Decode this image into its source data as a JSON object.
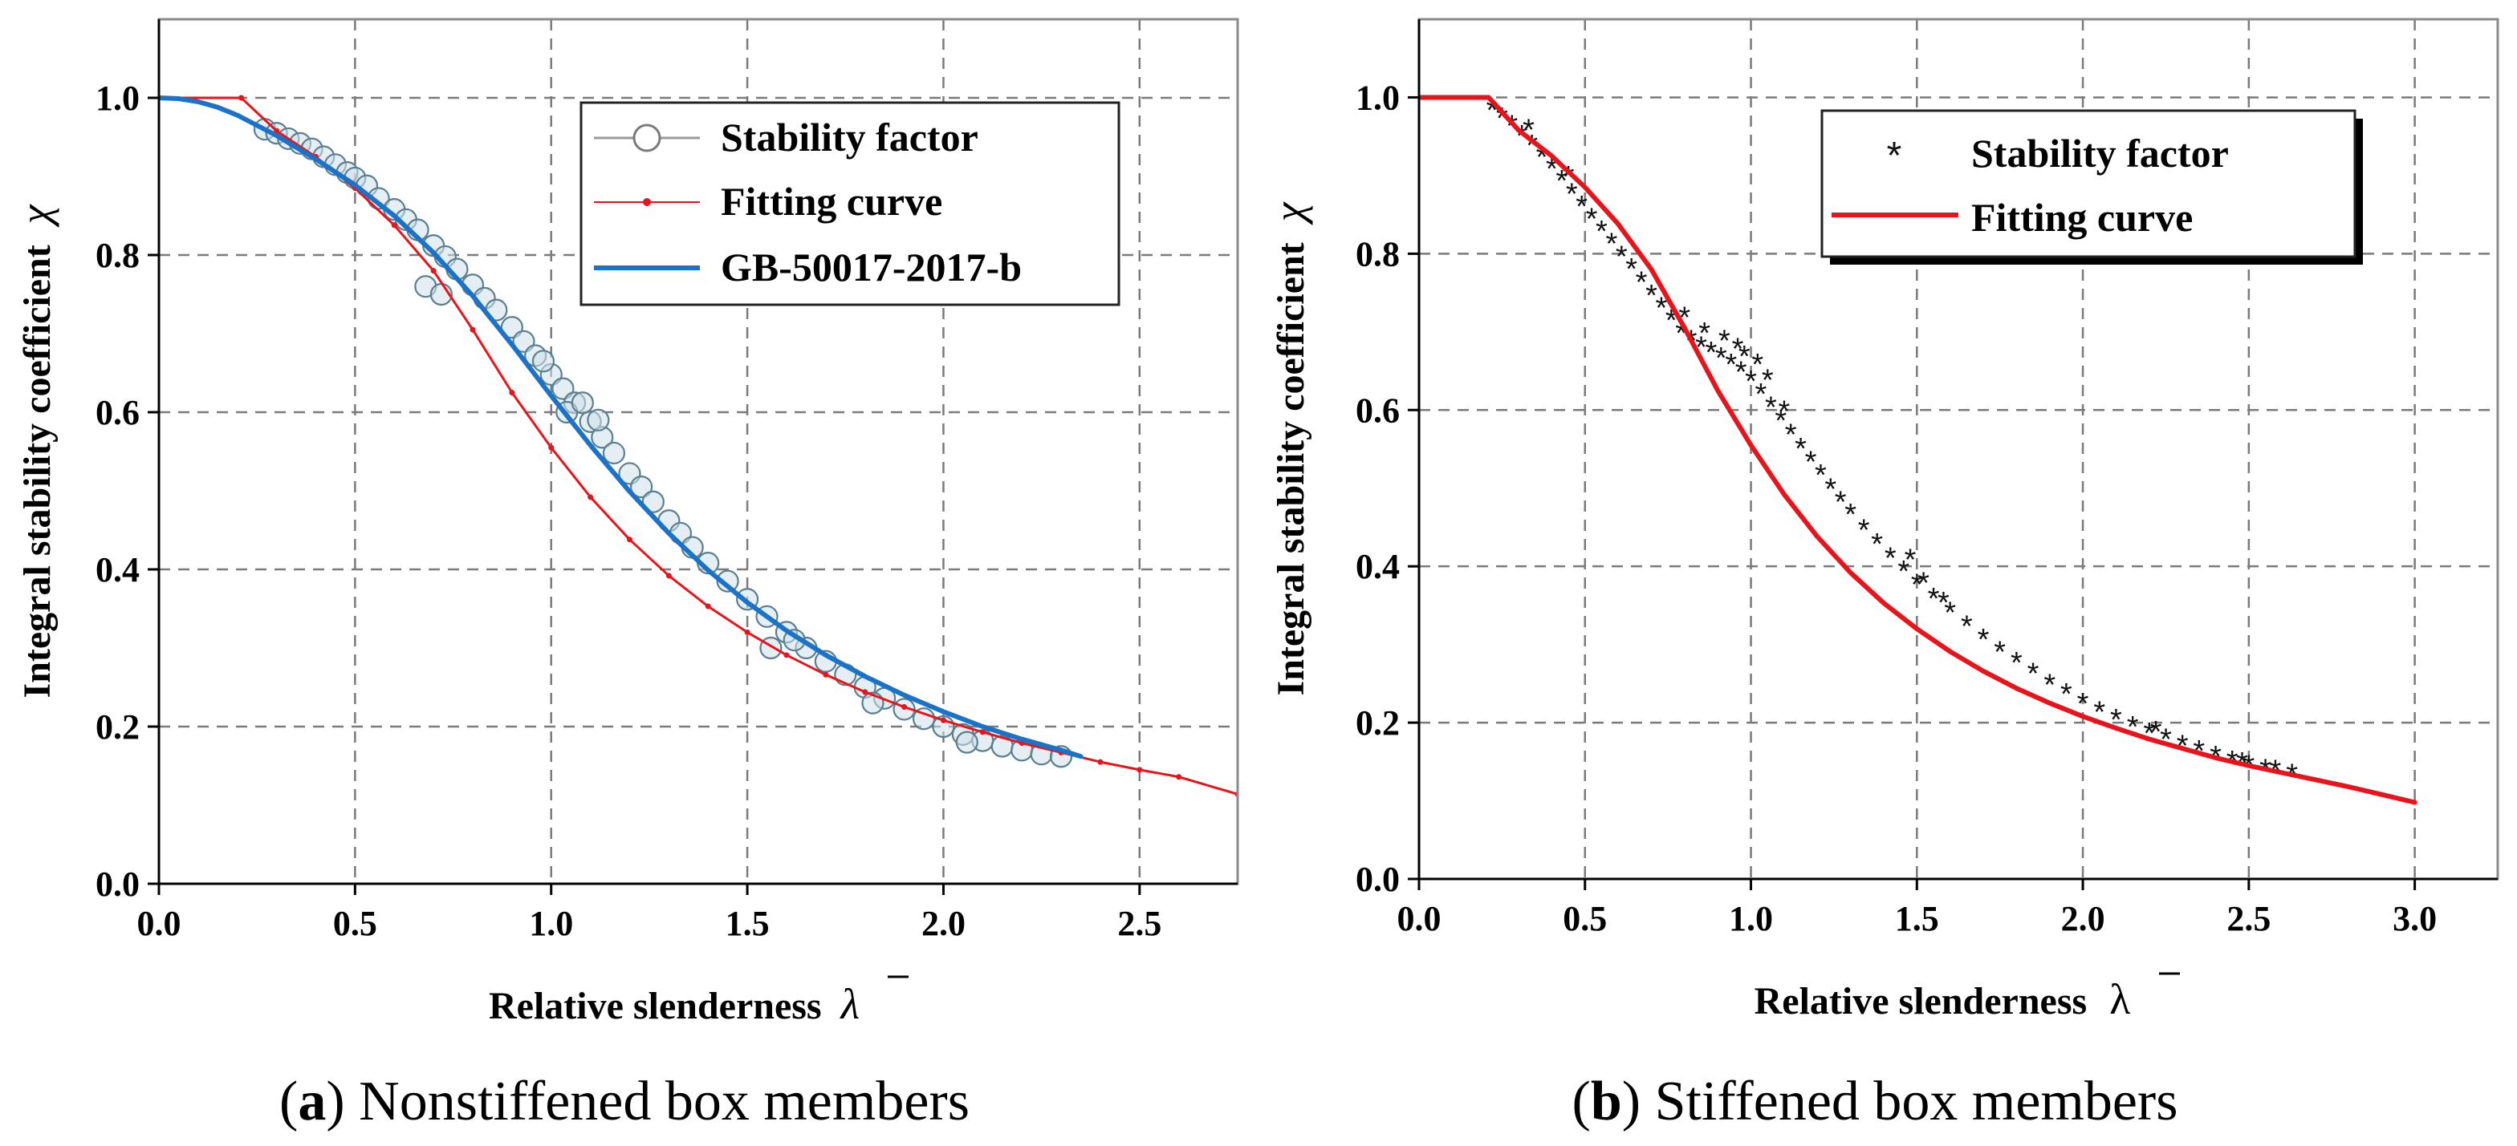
{
  "figure": {
    "caption_a": {
      "label": "a",
      "open": "(",
      "close": ")",
      "text": " Nonstiffened box members"
    },
    "caption_b": {
      "label": "b",
      "open": "(",
      "close": ")",
      "text": " Stiffened box members"
    }
  },
  "colors": {
    "stability_a": "#5a7f8f",
    "stability_a_fill": "#cfe0ea",
    "fitting": "#e8141b",
    "gb": "#1a73c8",
    "stability_b": "#111111"
  },
  "chart_data": [
    {
      "id": "a",
      "type": "line",
      "title": "",
      "xlabel": "Relative slenderness",
      "xlabel_symbol": "λ",
      "ylabel": "Integral stability coefficient",
      "ylabel_symbol": "χ",
      "xlim": [
        0.0,
        2.75
      ],
      "ylim": [
        0.0,
        1.1
      ],
      "xticks": [
        0.0,
        0.5,
        1.0,
        1.5,
        2.0,
        2.5
      ],
      "xtick_labels": [
        "0.0",
        "0.5",
        "1.0",
        "1.5",
        "2.0",
        "2.5"
      ],
      "yticks": [
        0.0,
        0.2,
        0.4,
        0.6,
        0.8,
        1.0
      ],
      "ytick_labels": [
        "0.0",
        "0.2",
        "0.4",
        "0.6",
        "0.8",
        "1.0"
      ],
      "grid": true,
      "legend_position": "top-right",
      "legend": [
        "Stability factor",
        "Fitting curve",
        "GB-50017-2017-b"
      ],
      "series": [
        {
          "name": "Stability factor",
          "marker": "open-circle",
          "points": [
            [
              0.27,
              0.96
            ],
            [
              0.3,
              0.955
            ],
            [
              0.33,
              0.948
            ],
            [
              0.36,
              0.942
            ],
            [
              0.39,
              0.935
            ],
            [
              0.42,
              0.925
            ],
            [
              0.45,
              0.915
            ],
            [
              0.48,
              0.905
            ],
            [
              0.5,
              0.898
            ],
            [
              0.53,
              0.888
            ],
            [
              0.56,
              0.872
            ],
            [
              0.6,
              0.858
            ],
            [
              0.63,
              0.845
            ],
            [
              0.66,
              0.832
            ],
            [
              0.7,
              0.812
            ],
            [
              0.73,
              0.798
            ],
            [
              0.76,
              0.782
            ],
            [
              0.8,
              0.762
            ],
            [
              0.83,
              0.745
            ],
            [
              0.86,
              0.73
            ],
            [
              0.9,
              0.708
            ],
            [
              0.93,
              0.69
            ],
            [
              0.96,
              0.672
            ],
            [
              1.0,
              0.648
            ],
            [
              1.03,
              0.63
            ],
            [
              1.06,
              0.612
            ],
            [
              1.1,
              0.588
            ],
            [
              1.13,
              0.568
            ],
            [
              1.16,
              0.548
            ],
            [
              1.2,
              0.522
            ],
            [
              1.23,
              0.505
            ],
            [
              1.26,
              0.486
            ],
            [
              1.3,
              0.462
            ],
            [
              1.33,
              0.446
            ],
            [
              1.36,
              0.428
            ],
            [
              1.4,
              0.408
            ],
            [
              1.45,
              0.385
            ],
            [
              1.5,
              0.362
            ],
            [
              1.55,
              0.34
            ],
            [
              1.6,
              0.32
            ],
            [
              1.65,
              0.3
            ],
            [
              1.7,
              0.283
            ],
            [
              1.75,
              0.266
            ],
            [
              1.8,
              0.25
            ],
            [
              1.85,
              0.236
            ],
            [
              1.9,
              0.222
            ],
            [
              1.95,
              0.21
            ],
            [
              2.0,
              0.2
            ],
            [
              2.05,
              0.19
            ],
            [
              2.1,
              0.182
            ],
            [
              2.15,
              0.175
            ],
            [
              2.2,
              0.17
            ],
            [
              2.25,
              0.165
            ],
            [
              2.3,
              0.162
            ],
            [
              0.68,
              0.76
            ],
            [
              0.72,
              0.75
            ],
            [
              0.98,
              0.665
            ],
            [
              1.04,
              0.6
            ],
            [
              1.08,
              0.612
            ],
            [
              1.12,
              0.59
            ],
            [
              1.56,
              0.3
            ],
            [
              1.62,
              0.31
            ],
            [
              1.82,
              0.23
            ],
            [
              2.06,
              0.18
            ]
          ]
        },
        {
          "name": "Fitting curve",
          "marker": "dot-line",
          "points": [
            [
              0.0,
              1.0
            ],
            [
              0.21,
              1.0
            ],
            [
              0.3,
              0.958
            ],
            [
              0.4,
              0.925
            ],
            [
              0.5,
              0.885
            ],
            [
              0.6,
              0.838
            ],
            [
              0.7,
              0.78
            ],
            [
              0.8,
              0.705
            ],
            [
              0.9,
              0.625
            ],
            [
              1.0,
              0.555
            ],
            [
              1.1,
              0.492
            ],
            [
              1.2,
              0.438
            ],
            [
              1.3,
              0.392
            ],
            [
              1.4,
              0.353
            ],
            [
              1.5,
              0.32
            ],
            [
              1.6,
              0.291
            ],
            [
              1.7,
              0.266
            ],
            [
              1.8,
              0.244
            ],
            [
              1.9,
              0.225
            ],
            [
              2.0,
              0.208
            ],
            [
              2.1,
              0.193
            ],
            [
              2.2,
              0.179
            ],
            [
              2.3,
              0.167
            ],
            [
              2.4,
              0.155
            ],
            [
              2.5,
              0.145
            ],
            [
              2.6,
              0.136
            ],
            [
              2.75,
              0.114
            ]
          ]
        },
        {
          "name": "GB-50017-2017-b",
          "marker": "line",
          "points": [
            [
              0.0,
              1.0
            ],
            [
              0.05,
              0.999
            ],
            [
              0.1,
              0.995
            ],
            [
              0.15,
              0.988
            ],
            [
              0.2,
              0.978
            ],
            [
              0.3,
              0.952
            ],
            [
              0.4,
              0.922
            ],
            [
              0.5,
              0.889
            ],
            [
              0.6,
              0.85
            ],
            [
              0.7,
              0.803
            ],
            [
              0.8,
              0.748
            ],
            [
              0.9,
              0.686
            ],
            [
              1.0,
              0.621
            ],
            [
              1.1,
              0.558
            ],
            [
              1.2,
              0.499
            ],
            [
              1.3,
              0.446
            ],
            [
              1.4,
              0.399
            ],
            [
              1.5,
              0.358
            ],
            [
              1.6,
              0.322
            ],
            [
              1.7,
              0.291
            ],
            [
              1.8,
              0.264
            ],
            [
              1.9,
              0.24
            ],
            [
              2.0,
              0.219
            ],
            [
              2.1,
              0.2
            ],
            [
              2.2,
              0.184
            ],
            [
              2.3,
              0.17
            ],
            [
              2.35,
              0.162
            ]
          ]
        }
      ]
    },
    {
      "id": "b",
      "type": "line",
      "title": "",
      "xlabel": "Relative slenderness",
      "xlabel_symbol": "λ",
      "ylabel": "Integral stability coefficient",
      "ylabel_symbol": "χ",
      "xlim": [
        0.0,
        3.25
      ],
      "ylim": [
        0.0,
        1.1
      ],
      "xticks": [
        0.0,
        0.5,
        1.0,
        1.5,
        2.0,
        2.5,
        3.0
      ],
      "xtick_labels": [
        "0.0",
        "0.5",
        "1.0",
        "1.5",
        "2.0",
        "2.5",
        "3.0"
      ],
      "yticks": [
        0.0,
        0.2,
        0.4,
        0.6,
        0.8,
        1.0
      ],
      "ytick_labels": [
        "0.0",
        "0.2",
        "0.4",
        "0.6",
        "0.8",
        "1.0"
      ],
      "grid": true,
      "legend_position": "top-right",
      "legend": [
        "Stability factor",
        "Fitting curve"
      ],
      "series": [
        {
          "name": "Stability factor",
          "marker": "asterisk",
          "points": [
            [
              0.22,
              0.985
            ],
            [
              0.25,
              0.975
            ],
            [
              0.28,
              0.965
            ],
            [
              0.31,
              0.952
            ],
            [
              0.34,
              0.94
            ],
            [
              0.37,
              0.925
            ],
            [
              0.4,
              0.91
            ],
            [
              0.43,
              0.895
            ],
            [
              0.46,
              0.878
            ],
            [
              0.49,
              0.862
            ],
            [
              0.52,
              0.846
            ],
            [
              0.55,
              0.83
            ],
            [
              0.58,
              0.814
            ],
            [
              0.61,
              0.798
            ],
            [
              0.64,
              0.782
            ],
            [
              0.67,
              0.765
            ],
            [
              0.7,
              0.748
            ],
            [
              0.73,
              0.732
            ],
            [
              0.76,
              0.716
            ],
            [
              0.79,
              0.7
            ],
            [
              0.82,
              0.69
            ],
            [
              0.85,
              0.682
            ],
            [
              0.88,
              0.675
            ],
            [
              0.91,
              0.668
            ],
            [
              0.94,
              0.66
            ],
            [
              0.97,
              0.65
            ],
            [
              1.0,
              0.638
            ],
            [
              1.03,
              0.622
            ],
            [
              1.06,
              0.605
            ],
            [
              1.09,
              0.588
            ],
            [
              1.12,
              0.57
            ],
            [
              1.15,
              0.552
            ],
            [
              1.18,
              0.535
            ],
            [
              1.21,
              0.518
            ],
            [
              1.24,
              0.5
            ],
            [
              1.27,
              0.484
            ],
            [
              1.3,
              0.468
            ],
            [
              1.34,
              0.448
            ],
            [
              1.38,
              0.43
            ],
            [
              1.42,
              0.412
            ],
            [
              1.46,
              0.395
            ],
            [
              1.5,
              0.378
            ],
            [
              1.55,
              0.36
            ],
            [
              1.6,
              0.342
            ],
            [
              1.65,
              0.325
            ],
            [
              1.7,
              0.308
            ],
            [
              1.75,
              0.292
            ],
            [
              1.8,
              0.278
            ],
            [
              1.85,
              0.264
            ],
            [
              1.9,
              0.25
            ],
            [
              1.95,
              0.238
            ],
            [
              2.0,
              0.226
            ],
            [
              2.05,
              0.215
            ],
            [
              2.1,
              0.205
            ],
            [
              2.15,
              0.196
            ],
            [
              2.2,
              0.188
            ],
            [
              2.25,
              0.18
            ],
            [
              2.3,
              0.172
            ],
            [
              2.35,
              0.165
            ],
            [
              2.4,
              0.158
            ],
            [
              2.45,
              0.152
            ],
            [
              2.5,
              0.146
            ],
            [
              2.55,
              0.141
            ],
            [
              2.63,
              0.135
            ],
            [
              0.86,
              0.7
            ],
            [
              0.92,
              0.69
            ],
            [
              0.98,
              0.67
            ],
            [
              1.02,
              0.66
            ],
            [
              0.8,
              0.72
            ],
            [
              1.05,
              0.64
            ],
            [
              1.1,
              0.6
            ],
            [
              0.96,
              0.68
            ],
            [
              1.52,
              0.38
            ],
            [
              1.48,
              0.41
            ],
            [
              1.58,
              0.355
            ],
            [
              2.22,
              0.19
            ],
            [
              2.48,
              0.15
            ],
            [
              2.58,
              0.14
            ],
            [
              0.33,
              0.96
            ],
            [
              0.45,
              0.9
            ]
          ]
        },
        {
          "name": "Fitting curve",
          "marker": "line",
          "points": [
            [
              0.0,
              1.0
            ],
            [
              0.21,
              1.0
            ],
            [
              0.3,
              0.958
            ],
            [
              0.4,
              0.925
            ],
            [
              0.5,
              0.885
            ],
            [
              0.6,
              0.838
            ],
            [
              0.7,
              0.78
            ],
            [
              0.8,
              0.705
            ],
            [
              0.9,
              0.625
            ],
            [
              1.0,
              0.555
            ],
            [
              1.1,
              0.492
            ],
            [
              1.2,
              0.438
            ],
            [
              1.3,
              0.392
            ],
            [
              1.4,
              0.353
            ],
            [
              1.5,
              0.32
            ],
            [
              1.6,
              0.291
            ],
            [
              1.7,
              0.266
            ],
            [
              1.8,
              0.244
            ],
            [
              1.9,
              0.225
            ],
            [
              2.0,
              0.208
            ],
            [
              2.1,
              0.193
            ],
            [
              2.2,
              0.179
            ],
            [
              2.3,
              0.167
            ],
            [
              2.4,
              0.155
            ],
            [
              2.5,
              0.145
            ],
            [
              2.6,
              0.136
            ],
            [
              2.7,
              0.127
            ],
            [
              2.8,
              0.118
            ],
            [
              2.9,
              0.108
            ],
            [
              3.0,
              0.098
            ]
          ]
        }
      ]
    }
  ]
}
